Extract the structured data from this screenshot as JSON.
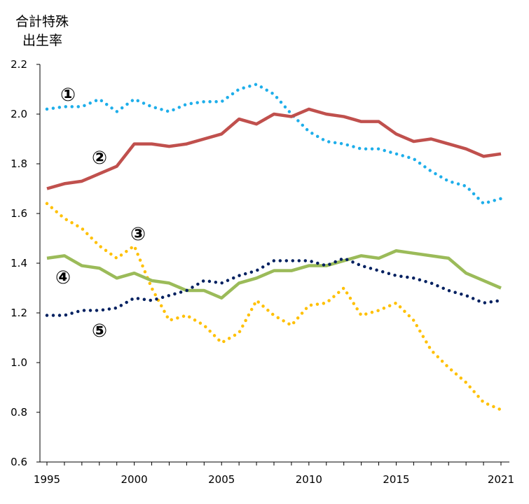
{
  "chart_data": {
    "type": "line",
    "ylabel": [
      "合計特殊",
      "出生率"
    ],
    "xlabel": "",
    "ylim": [
      0.6,
      2.2
    ],
    "xlim": [
      1995,
      2021
    ],
    "yticks": [
      "0.6",
      "0.8",
      "1.0",
      "1.2",
      "1.4",
      "1.6",
      "1.8",
      "2.0",
      "2.2"
    ],
    "xticks": [
      "1995",
      "2000",
      "2005",
      "2010",
      "2015",
      "2021"
    ],
    "grid": false,
    "x": [
      1995,
      1996,
      1997,
      1998,
      1999,
      2000,
      2001,
      2002,
      2003,
      2004,
      2005,
      2006,
      2007,
      2008,
      2009,
      2010,
      2011,
      2012,
      2013,
      2014,
      2015,
      2016,
      2017,
      2018,
      2019,
      2020,
      2021
    ],
    "series": [
      {
        "marker": "①",
        "color": "#1eaeea",
        "style": "dotted",
        "values": [
          2.02,
          2.03,
          2.03,
          2.06,
          2.01,
          2.06,
          2.03,
          2.01,
          2.04,
          2.05,
          2.05,
          2.1,
          2.12,
          2.08,
          2.0,
          1.93,
          1.89,
          1.88,
          1.86,
          1.86,
          1.84,
          1.82,
          1.77,
          1.73,
          1.71,
          1.64,
          1.66
        ]
      },
      {
        "marker": "②",
        "color": "#c0504d",
        "style": "solid",
        "values": [
          1.7,
          1.72,
          1.73,
          1.76,
          1.79,
          1.88,
          1.88,
          1.87,
          1.88,
          1.9,
          1.92,
          1.98,
          1.96,
          2.0,
          1.99,
          2.02,
          2.0,
          1.99,
          1.97,
          1.97,
          1.92,
          1.89,
          1.9,
          1.88,
          1.86,
          1.83,
          1.84
        ]
      },
      {
        "marker": "③",
        "color": "#ffc000",
        "style": "dotted",
        "values": [
          1.64,
          1.58,
          1.54,
          1.47,
          1.42,
          1.47,
          1.3,
          1.17,
          1.19,
          1.15,
          1.08,
          1.12,
          1.25,
          1.19,
          1.15,
          1.23,
          1.24,
          1.3,
          1.19,
          1.21,
          1.24,
          1.17,
          1.05,
          0.98,
          0.92,
          0.84,
          0.81
        ]
      },
      {
        "marker": "④",
        "color": "#9bbb59",
        "style": "solid",
        "values": [
          1.42,
          1.43,
          1.39,
          1.38,
          1.34,
          1.36,
          1.33,
          1.32,
          1.29,
          1.29,
          1.26,
          1.32,
          1.34,
          1.37,
          1.37,
          1.39,
          1.39,
          1.41,
          1.43,
          1.42,
          1.45,
          1.44,
          1.43,
          1.42,
          1.36,
          1.33,
          1.3
        ]
      },
      {
        "marker": "⑤",
        "color": "#002060",
        "style": "dotted",
        "values": [
          1.19,
          1.19,
          1.21,
          1.21,
          1.22,
          1.26,
          1.25,
          1.27,
          1.29,
          1.33,
          1.32,
          1.35,
          1.37,
          1.41,
          1.41,
          1.41,
          1.39,
          1.42,
          1.39,
          1.37,
          1.35,
          1.34,
          1.32,
          1.29,
          1.27,
          1.24,
          1.25
        ]
      }
    ]
  }
}
